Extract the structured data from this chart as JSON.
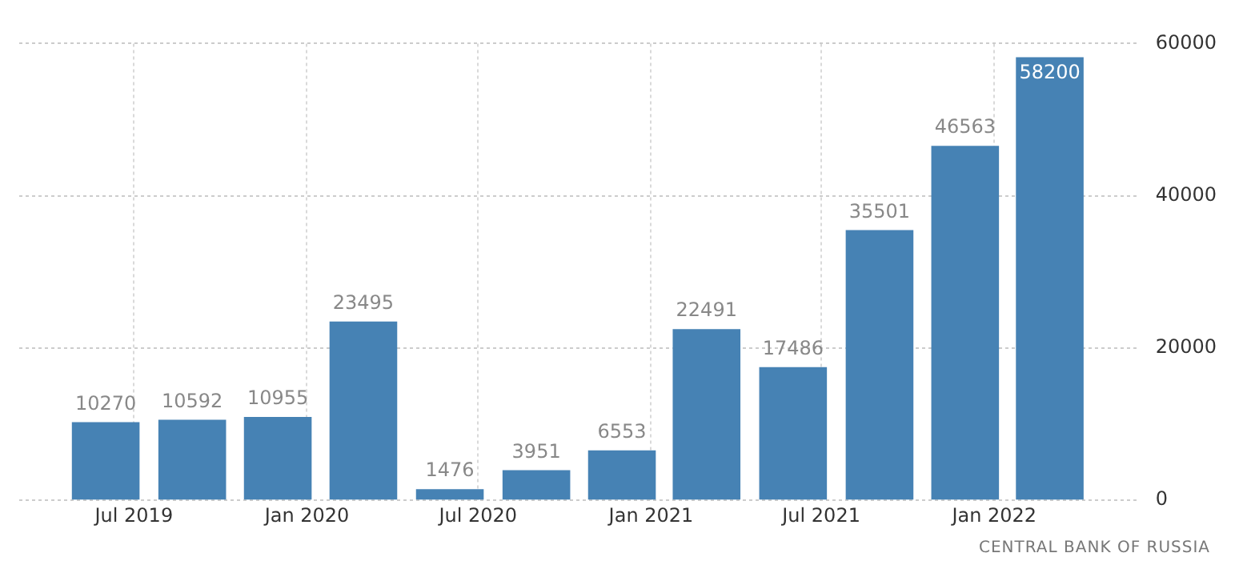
{
  "chart_data": {
    "type": "bar",
    "x": [
      "2019-06",
      "2019-09",
      "2019-12",
      "2020-03",
      "2020-06",
      "2020-09",
      "2020-12",
      "2021-03",
      "2021-06",
      "2021-09",
      "2021-12",
      "2022-03"
    ],
    "values": [
      10270,
      10592,
      10955,
      23495,
      1476,
      3951,
      6553,
      22491,
      17486,
      35501,
      46563,
      58200
    ],
    "color": "#4682b4",
    "xlim": [
      "2019-03",
      "2022-06"
    ],
    "xticks": [
      {
        "value": "2019-07",
        "label": "Jul 2019"
      },
      {
        "value": "2020-01",
        "label": "Jan 2020"
      },
      {
        "value": "2020-07",
        "label": "Jul 2020"
      },
      {
        "value": "2021-01",
        "label": "Jan 2021"
      },
      {
        "value": "2021-07",
        "label": "Jul 2021"
      },
      {
        "value": "2022-01",
        "label": "Jan 2022"
      }
    ],
    "ylim": [
      0,
      60000
    ],
    "yticks": [
      0,
      20000,
      40000,
      60000
    ],
    "grid": true,
    "data_labels": true,
    "annotations": [
      "CENTRAL BANK OF RUSSIA"
    ]
  }
}
